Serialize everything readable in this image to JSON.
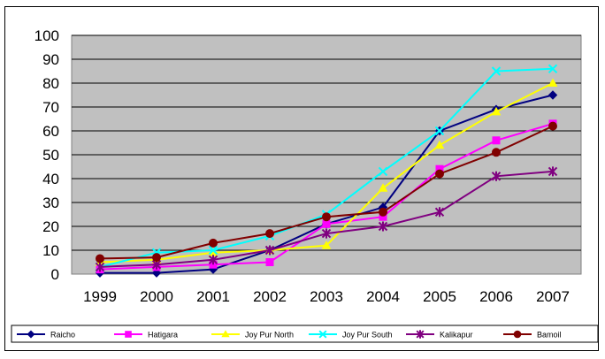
{
  "chart_data": {
    "type": "line",
    "title": "",
    "xlabel": "",
    "ylabel": "",
    "categories": [
      "1999",
      "2000",
      "2001",
      "2002",
      "2003",
      "2004",
      "2005",
      "2006",
      "2007"
    ],
    "ylim": [
      0,
      100
    ],
    "yticks": [
      "0",
      "10",
      "20",
      "30",
      "40",
      "50",
      "60",
      "70",
      "80",
      "90",
      "100"
    ],
    "grid": true,
    "legend_position": "bottom",
    "plot_background": "#c0c0c0",
    "series": [
      {
        "name": "Raicho",
        "color": "#000080",
        "marker": "diamond",
        "values": [
          0.5,
          0.5,
          2,
          10,
          21,
          28,
          60,
          69,
          75
        ]
      },
      {
        "name": "Hatigara",
        "color": "#ff00ff",
        "marker": "square",
        "values": [
          2,
          3,
          4,
          5,
          21,
          24,
          44,
          56,
          63
        ]
      },
      {
        "name": "Joy Pur North",
        "color": "#ffff00",
        "marker": "triangle",
        "values": [
          5,
          6,
          9,
          10,
          12,
          36,
          54,
          68,
          80
        ]
      },
      {
        "name": "Joy Pur South",
        "color": "#00ffff",
        "marker": "x",
        "values": [
          3,
          9,
          10,
          16,
          25,
          43,
          60,
          85,
          86
        ]
      },
      {
        "name": "Kalikapur",
        "color": "#800080",
        "marker": "asterisk",
        "values": [
          3,
          4,
          6,
          10,
          17,
          20,
          26,
          41,
          43
        ]
      },
      {
        "name": "Bamoil",
        "color": "#800000",
        "marker": "circle",
        "values": [
          6.5,
          7,
          13,
          17,
          24,
          26,
          42,
          51,
          62
        ]
      }
    ]
  }
}
